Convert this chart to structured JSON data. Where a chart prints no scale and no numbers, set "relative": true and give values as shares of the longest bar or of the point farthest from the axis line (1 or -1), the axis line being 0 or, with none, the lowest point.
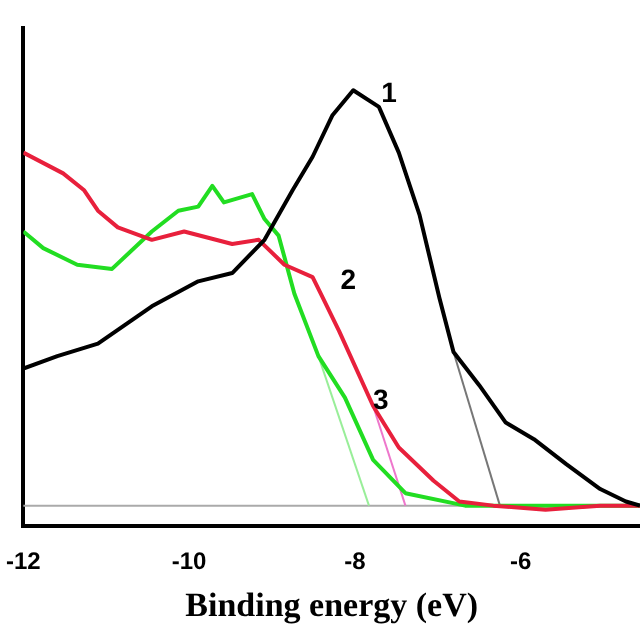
{
  "chart_data": {
    "type": "line",
    "xlabel": "Binding energy (eV)",
    "relative": true,
    "xlim": [
      -12,
      -4.56
    ],
    "xticks": [
      -12,
      -10,
      -8,
      -6
    ],
    "grid": false,
    "legend": false,
    "marker": "none",
    "line_style": "solid",
    "tick_labels": "x",
    "ref_lines": [
      {
        "axis": "y",
        "value": 0,
        "color": "#aaaaaa"
      }
    ],
    "annotations": [
      {
        "text": "1",
        "x": -8.02,
        "y": 1.0
      },
      {
        "text": "2",
        "x": -8.51,
        "y": 0.55
      },
      {
        "text": "3",
        "x": -8.12,
        "y": 0.26
      }
    ],
    "series": [
      {
        "color": "#000000",
        "x": [
          -12,
          -11.59,
          -11.1,
          -10.45,
          -9.89,
          -9.48,
          -9.09,
          -8.75,
          -8.51,
          -8.27,
          -8.02,
          -7.71,
          -7.47,
          -7.22,
          -6.98,
          -6.81,
          -6.5,
          -6.18,
          -5.84,
          -5.45,
          -5.04,
          -4.73,
          -4.56
        ],
        "values": [
          0.33,
          0.36,
          0.39,
          0.48,
          0.54,
          0.56,
          0.64,
          0.76,
          0.84,
          0.94,
          1.0,
          0.96,
          0.85,
          0.7,
          0.5,
          0.37,
          0.29,
          0.2,
          0.16,
          0.1,
          0.04,
          0.01,
          0.0
        ]
      },
      {
        "color": "#e8203c",
        "x": [
          -12,
          -11.52,
          -11.27,
          -11.1,
          -10.86,
          -10.45,
          -10.06,
          -9.48,
          -9.16,
          -8.85,
          -8.51,
          -8.41,
          -8.19,
          -7.78,
          -7.47,
          -7.05,
          -6.74,
          -6.33,
          -5.7,
          -5.04,
          -4.56
        ],
        "values": [
          0.85,
          0.8,
          0.76,
          0.71,
          0.67,
          0.64,
          0.66,
          0.63,
          0.64,
          0.58,
          0.55,
          0.51,
          0.42,
          0.24,
          0.14,
          0.06,
          0.01,
          0,
          -0.01,
          0,
          0
        ]
      },
      {
        "color": "#22dd22",
        "x": [
          -12,
          -11.76,
          -11.35,
          -10.93,
          -10.45,
          -10.13,
          -9.89,
          -9.72,
          -9.58,
          -9.24,
          -9.09,
          -8.92,
          -8.73,
          -8.44,
          -8.12,
          -7.78,
          -7.39,
          -6.67,
          -5.84,
          -5.04,
          -4.56
        ],
        "values": [
          0.66,
          0.62,
          0.58,
          0.57,
          0.66,
          0.71,
          0.72,
          0.77,
          0.73,
          0.75,
          0.69,
          0.65,
          0.51,
          0.36,
          0.26,
          0.11,
          0.03,
          0,
          0,
          0,
          0
        ]
      },
      {
        "color": "#777777",
        "x": [
          -6.81,
          -6.25
        ],
        "values": [
          0.37,
          0
        ]
      },
      {
        "color": "#ee77cc",
        "x": [
          -7.78,
          -7.39
        ],
        "values": [
          0.24,
          0
        ]
      },
      {
        "color": "#99ee99",
        "x": [
          -8.44,
          -7.83
        ],
        "values": [
          0.36,
          0
        ]
      }
    ]
  }
}
